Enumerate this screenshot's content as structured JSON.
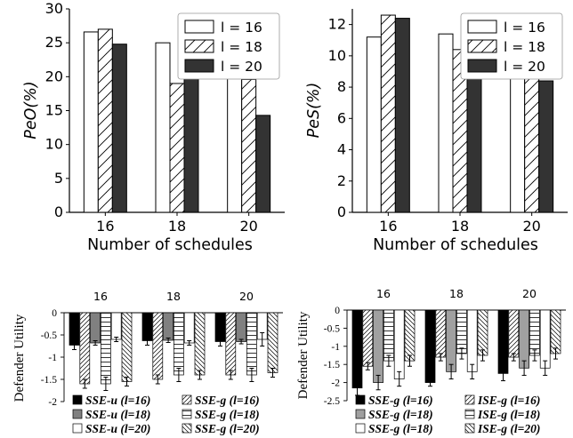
{
  "chart_data": [
    {
      "type": "bar",
      "xlabel": "Number of schedules",
      "ylabel": "PeO(%)",
      "categories": [
        "16",
        "18",
        "20"
      ],
      "ylim": [
        0,
        30
      ],
      "yticks": [
        "0",
        "5",
        "10",
        "15",
        "20",
        "25",
        "30"
      ],
      "legend_position": "top-right",
      "series": [
        {
          "name": "l = 16",
          "values": [
            26.6,
            25.0,
            22.6
          ]
        },
        {
          "name": "l = 18",
          "values": [
            27.0,
            19.0,
            19.6
          ]
        },
        {
          "name": "l = 20",
          "values": [
            24.8,
            19.8,
            14.3
          ]
        }
      ]
    },
    {
      "type": "bar",
      "xlabel": "Number of schedules",
      "ylabel": "PeS(%)",
      "categories": [
        "16",
        "18",
        "20"
      ],
      "ylim": [
        0,
        13
      ],
      "yticks": [
        "0",
        "2",
        "4",
        "6",
        "8",
        "10",
        "12"
      ],
      "legend_position": "top-right",
      "series": [
        {
          "name": "l = 16",
          "values": [
            11.2,
            11.4,
            10.6
          ]
        },
        {
          "name": "l = 18",
          "values": [
            12.6,
            10.4,
            10.8
          ]
        },
        {
          "name": "l = 20",
          "values": [
            12.4,
            10.6,
            8.4
          ]
        }
      ]
    },
    {
      "type": "bar",
      "ylabel": "Defender Utility",
      "categories": [
        "16",
        "18",
        "20"
      ],
      "ylim": [
        -2,
        0
      ],
      "yticks": [
        "0",
        "-0.5",
        "-1",
        "-1.5",
        "-2"
      ],
      "legend_position": "bottom",
      "series": [
        {
          "name": "SSE-u (l=16)",
          "values": [
            -0.73,
            -0.63,
            -0.65
          ],
          "errors": [
            0.1,
            0.1,
            0.1
          ]
        },
        {
          "name": "SSE-g (l=16)",
          "values": [
            -1.6,
            -1.5,
            -1.4
          ],
          "errors": [
            0.1,
            0.1,
            0.1
          ]
        },
        {
          "name": "SSE-u (l=18)",
          "values": [
            -0.68,
            -0.62,
            -0.65
          ],
          "errors": [
            0.05,
            0.05,
            0.05
          ]
        },
        {
          "name": "SSE-g (l=18)",
          "values": [
            -1.6,
            -1.4,
            -1.4
          ],
          "errors": [
            0.15,
            0.15,
            0.15
          ]
        },
        {
          "name": "SSE-u (l=20)",
          "values": [
            -0.6,
            -0.68,
            -0.6
          ],
          "errors": [
            0.05,
            0.05,
            0.15
          ]
        },
        {
          "name": "SSE-g (l=20)",
          "values": [
            -1.55,
            -1.4,
            -1.35
          ],
          "errors": [
            0.1,
            0.1,
            0.1
          ]
        }
      ]
    },
    {
      "type": "bar",
      "ylabel": "Defender Utility",
      "categories": [
        "16",
        "18",
        "20"
      ],
      "ylim": [
        -2.5,
        0
      ],
      "yticks": [
        "0",
        "-0.5",
        "-1",
        "-1.5",
        "-2",
        "-2.5"
      ],
      "legend_position": "bottom",
      "series": [
        {
          "name": "SSE-g (l=16)",
          "values": [
            -2.15,
            -2.0,
            -1.75
          ],
          "errors": [
            0.2,
            0.1,
            0.2
          ]
        },
        {
          "name": "ISE-g (l=16)",
          "values": [
            -1.55,
            -1.3,
            -1.3
          ],
          "errors": [
            0.1,
            0.1,
            0.1
          ]
        },
        {
          "name": "SSE-g (l=18)",
          "values": [
            -2.0,
            -1.7,
            -1.6
          ],
          "errors": [
            0.2,
            0.2,
            0.2
          ]
        },
        {
          "name": "ISE-g (l=18)",
          "values": [
            -1.4,
            -1.2,
            -1.25
          ],
          "errors": [
            0.15,
            0.15,
            0.15
          ]
        },
        {
          "name": "SSE-g (l=18)",
          "values": [
            -1.9,
            -1.7,
            -1.6
          ],
          "errors": [
            0.2,
            0.2,
            0.2
          ]
        },
        {
          "name": "ISE-g (l=20)",
          "values": [
            -1.4,
            -1.25,
            -1.2
          ],
          "errors": [
            0.15,
            0.15,
            0.15
          ]
        }
      ]
    }
  ]
}
